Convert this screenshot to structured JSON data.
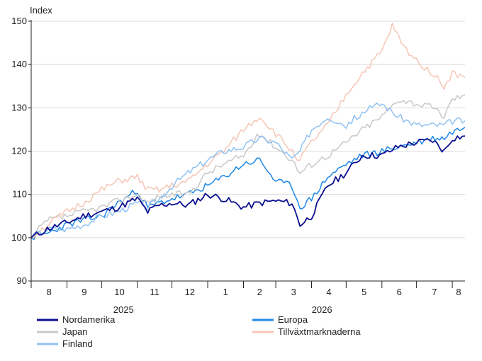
{
  "chart_data": {
    "type": "line",
    "title": "",
    "ylabel": "Index",
    "xlabel": "",
    "ylim": [
      90,
      150
    ],
    "yticks": [
      90,
      100,
      110,
      120,
      130,
      140,
      150
    ],
    "grid": "horizontal",
    "legend_position": "bottom",
    "months": [
      {
        "label": "8",
        "date": "2024-08-01"
      },
      {
        "label": "9",
        "date": "2024-09-01"
      },
      {
        "label": "10",
        "date": "2024-10-01"
      },
      {
        "label": "11",
        "date": "2024-11-01"
      },
      {
        "label": "12",
        "date": "2024-12-01"
      },
      {
        "label": "1",
        "date": "2025-01-01"
      },
      {
        "label": "2",
        "date": "2025-02-01"
      },
      {
        "label": "3",
        "date": "2025-03-01"
      },
      {
        "label": "4",
        "date": "2025-04-01"
      },
      {
        "label": "5",
        "date": "2025-05-01"
      },
      {
        "label": "6",
        "date": "2025-06-01"
      },
      {
        "label": "7",
        "date": "2025-07-01"
      },
      {
        "label": "8",
        "date": "2025-08-01"
      }
    ],
    "x_end": "2025-08-12",
    "years": [
      {
        "label": "2025",
        "center": "2024-10-20"
      },
      {
        "label": "2026",
        "center": "2025-04-10"
      }
    ],
    "series": [
      {
        "name": "Nordamerika",
        "color": "#0b0f8f",
        "x": [
          "2024-08-01",
          "2024-08-15",
          "2024-09-01",
          "2024-09-15",
          "2024-10-01",
          "2024-10-15",
          "2024-11-01",
          "2024-11-10",
          "2024-11-20",
          "2024-12-01",
          "2024-12-15",
          "2025-01-01",
          "2025-01-15",
          "2025-02-01",
          "2025-02-15",
          "2025-03-01",
          "2025-03-15",
          "2025-03-22",
          "2025-04-01",
          "2025-04-15",
          "2025-05-01",
          "2025-05-15",
          "2025-06-01",
          "2025-06-15",
          "2025-07-01",
          "2025-07-15",
          "2025-07-25",
          "2025-08-01",
          "2025-08-12"
        ],
        "y": [
          100,
          102,
          103.5,
          105,
          106,
          107,
          109,
          106,
          107.5,
          108,
          107.5,
          110,
          109,
          107,
          108,
          108.5,
          108,
          103,
          105,
          112,
          115,
          119,
          119,
          121,
          122,
          122.5,
          120,
          123,
          123.5
        ]
      },
      {
        "name": "Europa",
        "color": "#1e88e5",
        "x": [
          "2024-08-01",
          "2024-08-15",
          "2024-09-01",
          "2024-09-15",
          "2024-10-01",
          "2024-10-15",
          "2024-11-01",
          "2024-11-10",
          "2024-11-20",
          "2024-12-01",
          "2024-12-15",
          "2025-01-01",
          "2025-01-15",
          "2025-02-01",
          "2025-02-15",
          "2025-03-01",
          "2025-03-15",
          "2025-03-22",
          "2025-04-01",
          "2025-04-15",
          "2025-05-01",
          "2025-05-15",
          "2025-06-01",
          "2025-06-15",
          "2025-07-01",
          "2025-07-15",
          "2025-07-25",
          "2025-08-01",
          "2025-08-12"
        ],
        "y": [
          100,
          101,
          103,
          104,
          105,
          108,
          111,
          107,
          108,
          109,
          110,
          112,
          114,
          117,
          118,
          113,
          112,
          107,
          109,
          114,
          117,
          119,
          120,
          121,
          122,
          123,
          123,
          124.5,
          125.5
        ]
      },
      {
        "name": "Japan",
        "color": "#c8c8c8",
        "x": [
          "2024-08-01",
          "2024-08-15",
          "2024-09-01",
          "2024-09-15",
          "2024-10-01",
          "2024-10-15",
          "2024-11-01",
          "2024-11-10",
          "2024-11-20",
          "2024-12-01",
          "2024-12-15",
          "2025-01-01",
          "2025-01-15",
          "2025-02-01",
          "2025-02-15",
          "2025-03-01",
          "2025-03-15",
          "2025-03-22",
          "2025-04-01",
          "2025-04-15",
          "2025-05-01",
          "2025-05-15",
          "2025-06-01",
          "2025-06-15",
          "2025-07-01",
          "2025-07-15",
          "2025-07-25",
          "2025-08-01",
          "2025-08-12"
        ],
        "y": [
          100,
          104,
          105,
          106,
          107,
          108.5,
          110,
          108,
          109.5,
          110,
          110,
          115,
          117,
          119,
          124,
          121,
          118,
          115,
          117,
          119,
          122,
          125,
          128,
          132,
          131,
          130,
          128,
          132,
          133
        ]
      },
      {
        "name": "Tillväxtmarknaderna",
        "color": "#f5c6b6",
        "x": [
          "2024-08-01",
          "2024-08-15",
          "2024-09-01",
          "2024-09-15",
          "2024-10-01",
          "2024-10-15",
          "2024-11-01",
          "2024-11-10",
          "2024-11-20",
          "2024-12-01",
          "2024-12-15",
          "2025-01-01",
          "2025-01-15",
          "2025-02-01",
          "2025-02-15",
          "2025-03-01",
          "2025-03-15",
          "2025-03-22",
          "2025-04-01",
          "2025-04-15",
          "2025-05-01",
          "2025-05-15",
          "2025-06-01",
          "2025-06-10",
          "2025-06-20",
          "2025-07-01",
          "2025-07-15",
          "2025-07-25",
          "2025-08-01",
          "2025-08-12"
        ],
        "y": [
          100,
          103,
          106,
          108,
          111,
          113,
          114,
          111,
          111,
          112,
          113,
          117,
          120,
          125,
          128,
          124,
          120,
          118,
          122,
          126,
          133,
          138,
          143,
          149,
          144,
          141,
          138,
          135,
          138,
          137
        ]
      },
      {
        "name": "Finland",
        "color": "#90c2f2",
        "x": [
          "2024-08-01",
          "2024-08-15",
          "2024-09-01",
          "2024-09-15",
          "2024-10-01",
          "2024-10-15",
          "2024-11-01",
          "2024-11-10",
          "2024-11-20",
          "2024-12-01",
          "2024-12-15",
          "2025-01-01",
          "2025-01-15",
          "2025-02-01",
          "2025-02-15",
          "2025-03-01",
          "2025-03-15",
          "2025-03-22",
          "2025-04-01",
          "2025-04-15",
          "2025-05-01",
          "2025-05-15",
          "2025-06-01",
          "2025-06-15",
          "2025-07-01",
          "2025-07-15",
          "2025-07-25",
          "2025-08-01",
          "2025-08-12"
        ],
        "y": [
          100,
          102,
          102,
          103,
          105,
          106,
          108,
          107,
          109,
          112,
          115,
          118,
          120,
          121,
          123,
          122,
          118,
          120,
          125,
          128,
          126,
          129,
          131,
          128,
          126,
          126,
          126,
          127,
          127
        ]
      }
    ]
  }
}
